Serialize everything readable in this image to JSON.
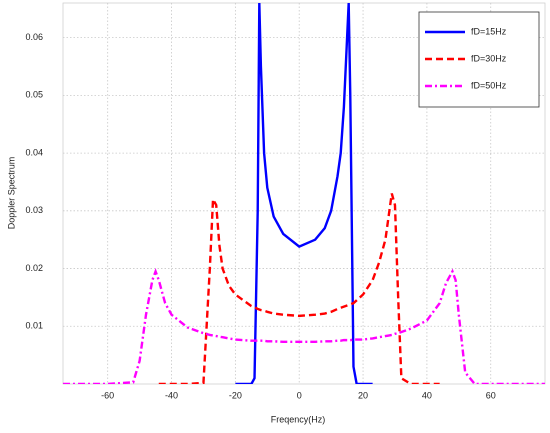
{
  "chart_data": {
    "type": "line",
    "x_label": "Freqency(Hz)",
    "y_label": "Doppler Spectrum",
    "xlim": [
      -74,
      77
    ],
    "ylim": [
      0,
      0.066
    ],
    "xticks": [
      -60,
      -40,
      -20,
      0,
      20,
      40,
      60
    ],
    "yticks": [
      0.01,
      0.02,
      0.03,
      0.04,
      0.05,
      0.06
    ],
    "grid": true,
    "legend": "upper right",
    "x": [
      -74,
      -60,
      -52,
      -50,
      -48,
      -46,
      -45,
      -44,
      -42,
      -40,
      -35,
      -30,
      -28,
      -27,
      -26,
      -25,
      -24,
      -22,
      -20,
      -15,
      -14,
      -13,
      -12.5,
      -12,
      -11,
      -10,
      -8,
      -5,
      0,
      5,
      8,
      10,
      12,
      13,
      14,
      15,
      15.5,
      16,
      17,
      18,
      20,
      23,
      25,
      27,
      28,
      29,
      30,
      31,
      32,
      35,
      40,
      44,
      46,
      48,
      49,
      50,
      52,
      55,
      65,
      77
    ],
    "series": [
      {
        "name": "fD=15Hz",
        "color": "#0000ff",
        "linestyle": "solid",
        "values": [
          null,
          null,
          null,
          null,
          null,
          null,
          null,
          null,
          null,
          null,
          null,
          null,
          null,
          null,
          null,
          null,
          null,
          null,
          0,
          0,
          0.001,
          0.03,
          0.066,
          0.055,
          0.04,
          0.034,
          0.029,
          0.026,
          0.0238,
          0.025,
          0.027,
          0.03,
          0.036,
          0.04,
          0.048,
          0.06,
          0.066,
          0.05,
          0.003,
          0,
          0,
          0,
          null,
          null,
          null,
          null,
          null,
          null,
          null,
          null,
          null,
          null,
          null,
          null,
          null,
          null,
          null,
          null,
          null,
          null
        ]
      },
      {
        "name": "fD=30Hz",
        "color": "#ff0000",
        "linestyle": "dashed",
        "values": [
          null,
          null,
          null,
          null,
          null,
          null,
          null,
          0,
          0,
          0,
          0,
          0.0002,
          0.02,
          0.032,
          0.031,
          0.024,
          0.02,
          0.017,
          0.0155,
          0.0135,
          0.0133,
          0.013,
          0.0129,
          0.0128,
          0.0127,
          0.0125,
          0.0122,
          0.012,
          0.0118,
          0.012,
          0.0122,
          0.0125,
          0.013,
          0.0132,
          0.0134,
          0.0136,
          0.0137,
          0.0138,
          0.014,
          0.0145,
          0.0155,
          0.018,
          0.021,
          0.025,
          0.029,
          0.033,
          0.031,
          0.015,
          0.001,
          0,
          0,
          0,
          null,
          null,
          null,
          null,
          null,
          null,
          null,
          null
        ]
      },
      {
        "name": "fD=50Hz",
        "color": "#ff00ff",
        "linestyle": "dashdot",
        "values": [
          0,
          0,
          0.0003,
          0.004,
          0.012,
          0.018,
          0.0195,
          0.018,
          0.014,
          0.012,
          0.0098,
          0.0088,
          0.0085,
          0.0084,
          0.0083,
          0.0082,
          0.0081,
          0.0079,
          0.0077,
          0.0075,
          0.0075,
          0.0075,
          0.0075,
          0.0075,
          0.0075,
          0.0074,
          0.0074,
          0.0073,
          0.0073,
          0.0073,
          0.0074,
          0.0074,
          0.0075,
          0.0075,
          0.0076,
          0.0076,
          0.0076,
          0.0076,
          0.0077,
          0.0077,
          0.0077,
          0.0079,
          0.0081,
          0.0083,
          0.0084,
          0.0085,
          0.0087,
          0.0088,
          0.009,
          0.0096,
          0.011,
          0.014,
          0.0175,
          0.0195,
          0.018,
          0.012,
          0.002,
          0,
          0,
          0
        ]
      }
    ]
  }
}
